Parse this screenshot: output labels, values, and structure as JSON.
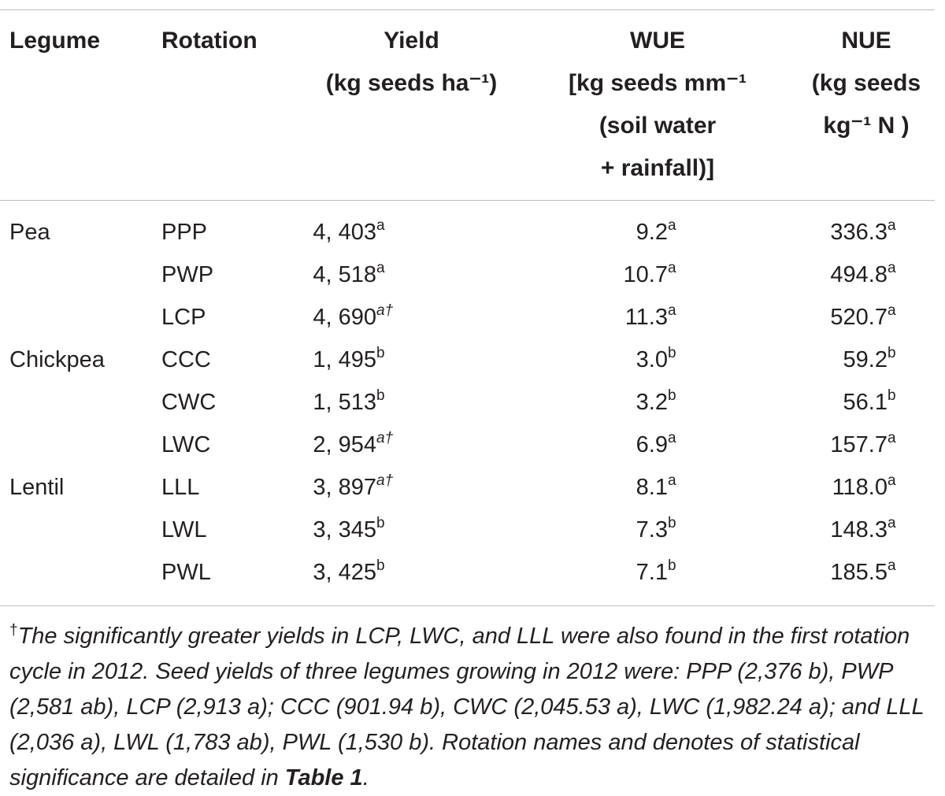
{
  "table": {
    "headers": {
      "legume": "Legume",
      "rotation": "Rotation",
      "yield": [
        "Yield",
        "(kg seeds ha⁻¹)"
      ],
      "wue": [
        "WUE",
        "[kg seeds mm⁻¹",
        "(soil water",
        "+ rainfall)]"
      ],
      "nue": [
        "NUE",
        "(kg seeds",
        "kg⁻¹ N )"
      ]
    },
    "rows": [
      {
        "legume": "Pea",
        "rotation": "PPP",
        "yield": "4, 403",
        "yield_sig": "a",
        "wue": "9.2",
        "wue_sig": "a",
        "nue": "336.3",
        "nue_sig": "a"
      },
      {
        "legume": "",
        "rotation": "PWP",
        "yield": "4, 518",
        "yield_sig": "a",
        "wue": "10.7",
        "wue_sig": "a",
        "nue": "494.8",
        "nue_sig": "a"
      },
      {
        "legume": "",
        "rotation": "LCP",
        "yield": "4, 690",
        "yield_sig": "a†",
        "wue": "11.3",
        "wue_sig": "a",
        "nue": "520.7",
        "nue_sig": "a"
      },
      {
        "legume": "Chickpea",
        "rotation": "CCC",
        "yield": "1, 495",
        "yield_sig": "b",
        "wue": "3.0",
        "wue_sig": "b",
        "nue": "59.2",
        "nue_sig": "b"
      },
      {
        "legume": "",
        "rotation": "CWC",
        "yield": "1, 513",
        "yield_sig": "b",
        "wue": "3.2",
        "wue_sig": "b",
        "nue": "56.1",
        "nue_sig": "b"
      },
      {
        "legume": "",
        "rotation": "LWC",
        "yield": "2, 954",
        "yield_sig": "a†",
        "wue": "6.9",
        "wue_sig": "a",
        "nue": "157.7",
        "nue_sig": "a"
      },
      {
        "legume": "Lentil",
        "rotation": "LLL",
        "yield": "3, 897",
        "yield_sig": "a†",
        "wue": "8.1",
        "wue_sig": "a",
        "nue": "118.0",
        "nue_sig": "a"
      },
      {
        "legume": "",
        "rotation": "LWL",
        "yield": "3, 345",
        "yield_sig": "b",
        "wue": "7.3",
        "wue_sig": "b",
        "nue": "148.3",
        "nue_sig": "a"
      },
      {
        "legume": "",
        "rotation": "PWL",
        "yield": "3, 425",
        "yield_sig": "b",
        "wue": "7.1",
        "wue_sig": "b",
        "nue": "185.5",
        "nue_sig": "a"
      }
    ]
  },
  "footnote": {
    "mark": "†",
    "text": "The significantly greater yields in LCP, LWC, and LLL were also found in the first rotation cycle in 2012. Seed yields of three legumes growing in 2012 were: PPP (2,376 b), PWP (2,581 ab), LCP (2,913 a); CCC (901.94 b), CWC (2,045.53 a), LWC (1,982.24 a); and LLL (2,036 a), LWL (1,783 ab), PWL (1,530 b). Rotation names and denotes of statistical significance are detailed in ",
    "ref": "Table 1",
    "end": "."
  }
}
